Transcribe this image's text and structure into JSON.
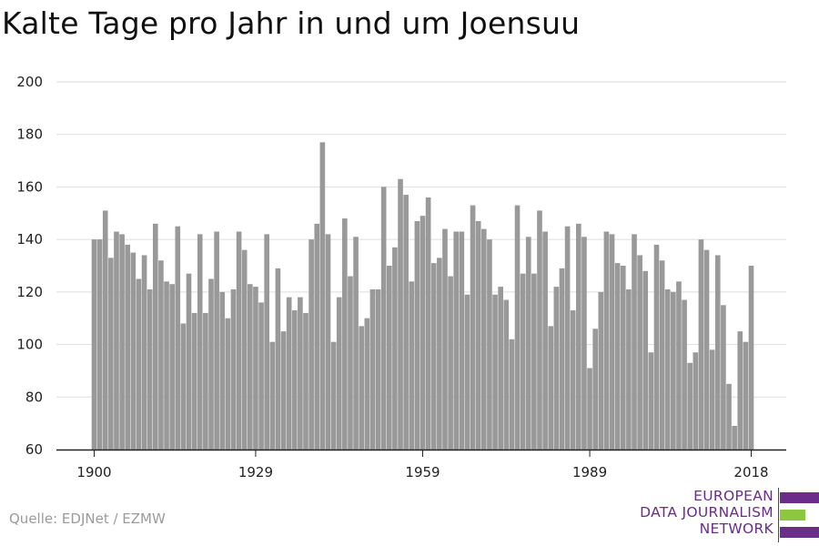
{
  "title": "Kalte Tage pro Jahr in und um Joensuu",
  "source": "Quelle: EDJNet / EZMW",
  "logo": {
    "lines": [
      "EUROPEAN",
      "DATA JOURNALISM",
      "NETWORK"
    ],
    "colors": {
      "purple": "#6a2d8a",
      "green": "#8dc63f"
    }
  },
  "colors": {
    "bar": "#999999",
    "grid": "#dddddd",
    "axis": "#222222"
  },
  "chart_data": {
    "type": "bar",
    "title": "Kalte Tage pro Jahr in und um Joensuu",
    "xlabel": "",
    "ylabel": "",
    "ylim": [
      60,
      200
    ],
    "yticks": [
      60,
      80,
      100,
      120,
      140,
      160,
      180,
      200
    ],
    "xticks": [
      1900,
      1929,
      1959,
      1989,
      2018
    ],
    "grid": true,
    "x": [
      1900,
      1901,
      1902,
      1903,
      1904,
      1905,
      1906,
      1907,
      1908,
      1909,
      1910,
      1911,
      1912,
      1913,
      1914,
      1915,
      1916,
      1917,
      1918,
      1919,
      1920,
      1921,
      1922,
      1923,
      1924,
      1925,
      1926,
      1927,
      1928,
      1929,
      1930,
      1931,
      1932,
      1933,
      1934,
      1935,
      1936,
      1937,
      1938,
      1939,
      1940,
      1941,
      1942,
      1943,
      1944,
      1945,
      1946,
      1947,
      1948,
      1949,
      1950,
      1951,
      1952,
      1953,
      1954,
      1955,
      1956,
      1957,
      1958,
      1959,
      1960,
      1961,
      1962,
      1963,
      1964,
      1965,
      1966,
      1967,
      1968,
      1969,
      1970,
      1971,
      1972,
      1973,
      1974,
      1975,
      1976,
      1977,
      1978,
      1979,
      1980,
      1981,
      1982,
      1983,
      1984,
      1985,
      1986,
      1987,
      1988,
      1989,
      1990,
      1991,
      1992,
      1993,
      1994,
      1995,
      1996,
      1997,
      1998,
      1999,
      2000,
      2001,
      2002,
      2003,
      2004,
      2005,
      2006,
      2007,
      2008,
      2009,
      2010,
      2011,
      2012,
      2013,
      2014,
      2015,
      2016,
      2017,
      2018
    ],
    "values": [
      140,
      140,
      151,
      133,
      143,
      142,
      138,
      135,
      125,
      134,
      121,
      146,
      132,
      124,
      123,
      145,
      108,
      127,
      112,
      142,
      112,
      125,
      143,
      120,
      110,
      121,
      143,
      136,
      123,
      122,
      116,
      142,
      101,
      129,
      105,
      118,
      113,
      118,
      112,
      140,
      146,
      177,
      142,
      101,
      118,
      148,
      126,
      141,
      107,
      110,
      121,
      121,
      160,
      130,
      137,
      163,
      157,
      124,
      147,
      149,
      156,
      131,
      133,
      144,
      126,
      143,
      143,
      119,
      153,
      147,
      144,
      140,
      119,
      122,
      117,
      102,
      153,
      127,
      141,
      127,
      151,
      143,
      107,
      122,
      129,
      145,
      113,
      146,
      141,
      91,
      106,
      120,
      143,
      142,
      131,
      130,
      121,
      142,
      134,
      128,
      97,
      138,
      132,
      121,
      120,
      124,
      117,
      93,
      97,
      140,
      136,
      98,
      134,
      115,
      85,
      69,
      105,
      101,
      130
    ]
  }
}
